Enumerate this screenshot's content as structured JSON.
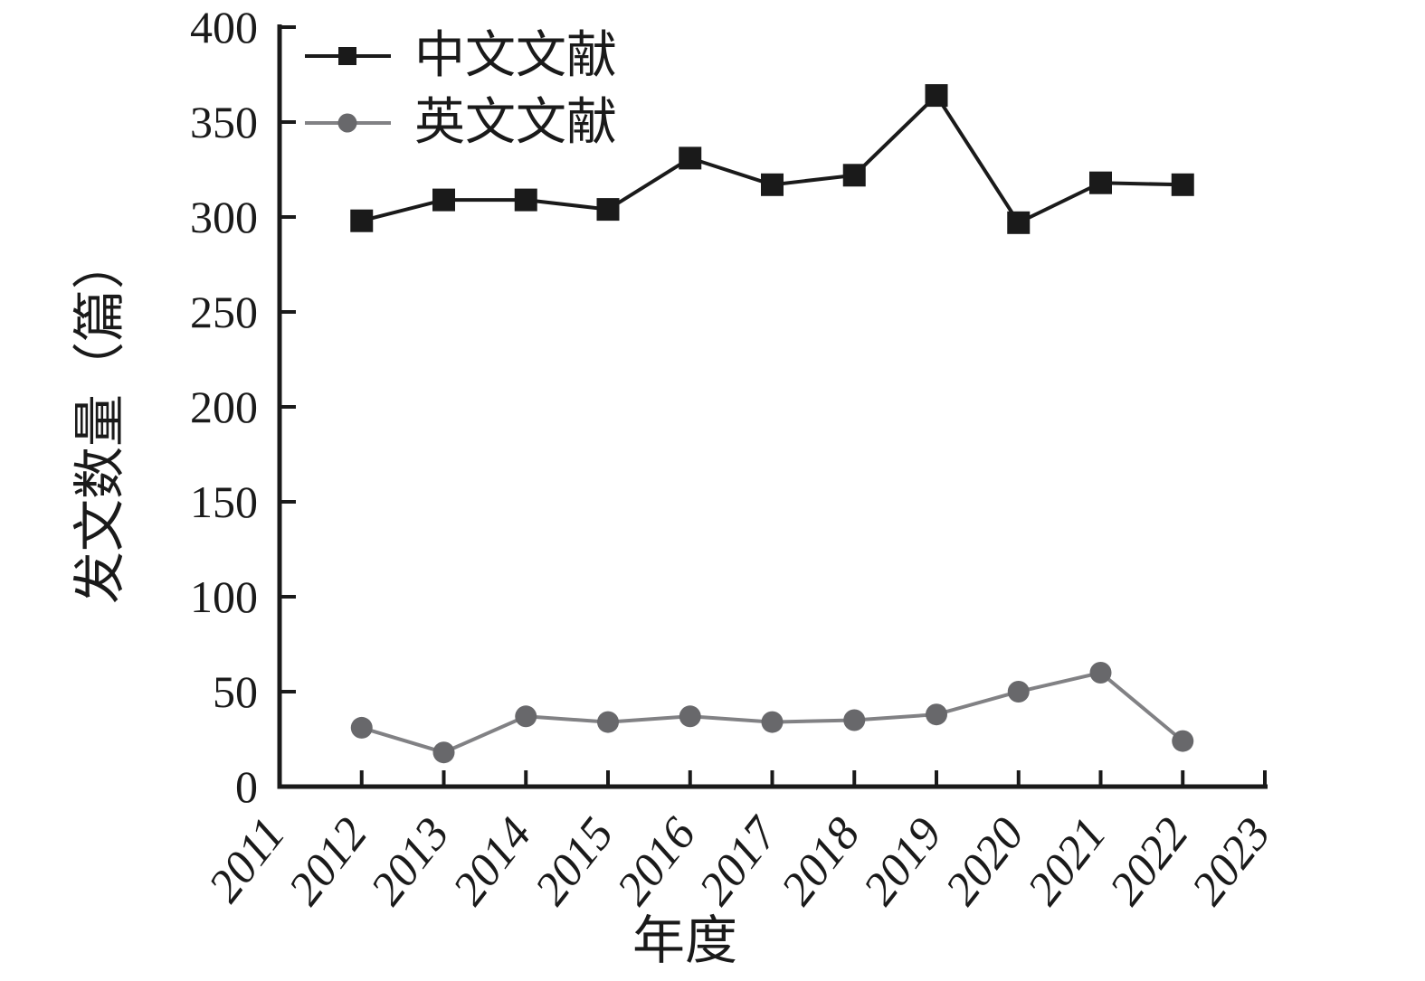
{
  "figure": {
    "background": "#ffffff",
    "text_color": "#1a1a1a",
    "axis_color": "#1a1a1a"
  },
  "chart_data": {
    "type": "line",
    "title": "",
    "xlabel": "年度",
    "ylabel": "发文数量（篇）",
    "x": [
      2012,
      2013,
      2014,
      2015,
      2016,
      2017,
      2018,
      2019,
      2020,
      2021,
      2022
    ],
    "xlim": [
      2011,
      2023
    ],
    "ylim": [
      0,
      400
    ],
    "xticks": [
      2011,
      2012,
      2013,
      2014,
      2015,
      2016,
      2017,
      2018,
      2019,
      2020,
      2021,
      2022,
      2023
    ],
    "yticks": [
      0,
      50,
      100,
      150,
      200,
      250,
      300,
      350,
      400
    ],
    "grid": false,
    "legend_position": "top-left",
    "series": [
      {
        "name": "中文文献",
        "marker": "square",
        "color": "#1a1a1a",
        "line_color": "#1a1a1a",
        "values": [
          298,
          309,
          309,
          304,
          331,
          317,
          322,
          364,
          297,
          318,
          317
        ]
      },
      {
        "name": "英文文献",
        "marker": "circle",
        "color": "#68686b",
        "line_color": "#818184",
        "values": [
          31,
          18,
          37,
          34,
          37,
          34,
          35,
          38,
          50,
          60,
          24
        ]
      }
    ]
  }
}
